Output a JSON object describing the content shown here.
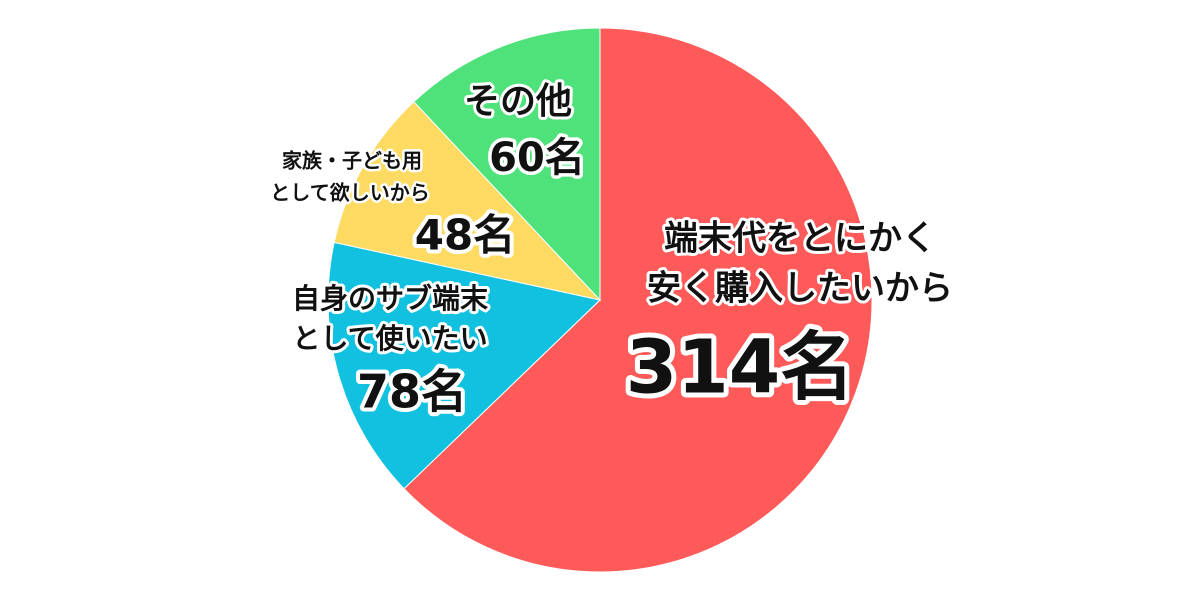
{
  "chart_data": {
    "type": "pie",
    "start": "top",
    "direction": "clockwise",
    "unit": "名",
    "categories": [
      {
        "label_lines": [
          "端末代をとにかく",
          "安く購入したいから"
        ],
        "value": 314,
        "value_label": "314名",
        "color": "#FF5A5A"
      },
      {
        "label_lines": [
          "自身のサブ端末",
          "として使いたい"
        ],
        "value": 78,
        "value_label": "78名",
        "color": "#12C1DF"
      },
      {
        "label_lines": [
          "家族・子ども用",
          "として欲しいから"
        ],
        "value": 48,
        "value_label": "48名",
        "color": "#FDDA62"
      },
      {
        "label_lines": [
          "その他"
        ],
        "value": 60,
        "value_label": "60名",
        "color": "#4FE27A"
      }
    ]
  }
}
